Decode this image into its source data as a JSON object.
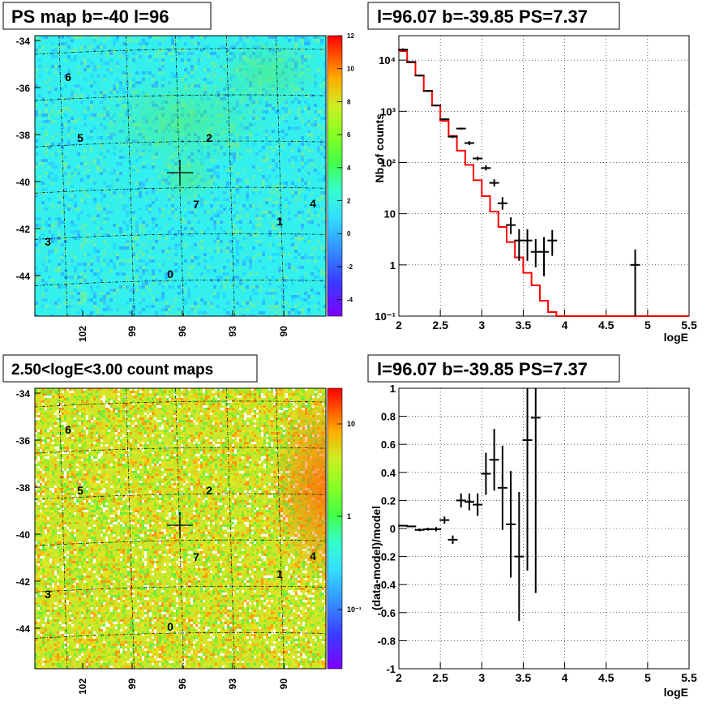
{
  "panels": {
    "tl": {
      "title": "PS map b=-40 l=96"
    },
    "tr": {
      "title": "l=96.07 b=-39.85 PS=7.37"
    },
    "bl": {
      "title": "2.50<logE<3.00 count maps"
    },
    "br": {
      "title": "l=96.07 b=-39.85 PS=7.37"
    }
  },
  "colors": {
    "model_line": "#ff0000",
    "data_points": "#000000",
    "grid": "#000000",
    "map_tl_base": "#33f0ee",
    "map_bl_base": "#c8e62a"
  },
  "chart_data": [
    {
      "type": "heatmap",
      "title": "PS map b=-40 l=96",
      "y_ticks": [
        "-34",
        "-36",
        "-38",
        "-40",
        "-42",
        "-44"
      ],
      "x_ticks": [
        "102",
        "99",
        "96",
        "93",
        "90"
      ],
      "colorbar": {
        "scale": "linear",
        "ticks": [
          "12",
          "10",
          "8",
          "6",
          "4",
          "2",
          "0",
          "-2",
          "-4"
        ],
        "range": [
          -5,
          12
        ]
      },
      "sources": [
        "6",
        "5",
        "2",
        "7",
        "4",
        "1",
        "3",
        "0"
      ],
      "marker": "+"
    },
    {
      "type": "line",
      "title": "l=96.07 b=-39.85 PS=7.37",
      "xlabel": "logE",
      "ylabel": "Nb of counts",
      "yscale": "log",
      "xlim": [
        2,
        5.5
      ],
      "ylim": [
        0.1,
        30000
      ],
      "x_ticks": [
        "2",
        "2.5",
        "3",
        "3.5",
        "4",
        "4.5",
        "5",
        "5.5"
      ],
      "y_ticks": [
        "10⁻¹",
        "1",
        "10",
        "10²",
        "10³",
        "10⁴"
      ],
      "grid": true,
      "model_bin_edges": [
        2.0,
        2.1,
        2.2,
        2.3,
        2.4,
        2.5,
        2.6,
        2.7,
        2.8,
        2.9,
        3.0,
        3.1,
        3.2,
        3.3,
        3.4,
        3.5,
        3.6,
        3.7,
        3.8,
        3.9,
        4.0,
        4.1,
        4.2,
        4.3,
        4.4,
        4.5,
        4.6,
        4.7,
        4.8,
        4.9,
        5.0,
        5.1,
        5.2,
        5.3,
        5.4,
        5.5
      ],
      "model_values": [
        15000,
        9000,
        5000,
        2500,
        1300,
        650,
        330,
        170,
        90,
        45,
        22,
        11,
        5.5,
        2.8,
        1.4,
        0.7,
        0.4,
        0.2,
        0.12,
        0.1,
        0.1,
        0.1,
        0.1,
        0.1,
        0.1,
        0.1,
        0.1,
        0.1,
        0.1,
        0.1,
        0.1,
        0.1,
        0.1,
        0.1,
        0.1
      ],
      "data_points": [
        {
          "x": 2.05,
          "y": 16000,
          "lo": 15000,
          "hi": 17000
        },
        {
          "x": 2.15,
          "y": 9200,
          "lo": 8900,
          "hi": 9500
        },
        {
          "x": 2.25,
          "y": 5000,
          "lo": 4800,
          "hi": 5200
        },
        {
          "x": 2.35,
          "y": 2500,
          "lo": 2400,
          "hi": 2600
        },
        {
          "x": 2.45,
          "y": 1300,
          "lo": 1250,
          "hi": 1350
        },
        {
          "x": 2.55,
          "y": 700,
          "lo": 670,
          "hi": 730
        },
        {
          "x": 2.65,
          "y": 320,
          "lo": 300,
          "hi": 340
        },
        {
          "x": 2.75,
          "y": 460,
          "lo": 440,
          "hi": 480
        },
        {
          "x": 2.85,
          "y": 240,
          "lo": 220,
          "hi": 260
        },
        {
          "x": 2.95,
          "y": 120,
          "lo": 110,
          "hi": 130
        },
        {
          "x": 3.05,
          "y": 78,
          "lo": 70,
          "hi": 88
        },
        {
          "x": 3.15,
          "y": 40,
          "lo": 34,
          "hi": 47
        },
        {
          "x": 3.25,
          "y": 16,
          "lo": 12,
          "hi": 21
        },
        {
          "x": 3.35,
          "y": 6,
          "lo": 4,
          "hi": 8.5
        },
        {
          "x": 3.45,
          "y": 3,
          "lo": 1.2,
          "hi": 5
        },
        {
          "x": 3.55,
          "y": 3,
          "lo": 1.2,
          "hi": 5
        },
        {
          "x": 3.65,
          "y": 1.8,
          "lo": 0.9,
          "hi": 3.2
        },
        {
          "x": 3.75,
          "y": 1.8,
          "lo": 0.6,
          "hi": 3.5
        },
        {
          "x": 3.85,
          "y": 3,
          "lo": 1.5,
          "hi": 4.8
        },
        {
          "x": 4.85,
          "y": 1,
          "lo": 0.1,
          "hi": 2
        }
      ]
    },
    {
      "type": "heatmap",
      "title": "2.50<logE<3.00 count maps",
      "y_ticks": [
        "-34",
        "-36",
        "-38",
        "-40",
        "-42",
        "-44"
      ],
      "x_ticks": [
        "102",
        "99",
        "96",
        "93",
        "90"
      ],
      "colorbar": {
        "scale": "log",
        "ticks": [
          "10",
          "1",
          "10⁻¹"
        ]
      },
      "sources": [
        "6",
        "5",
        "2",
        "7",
        "4",
        "1",
        "3",
        "0"
      ],
      "marker": "+"
    },
    {
      "type": "scatter",
      "title": "l=96.07 b=-39.85 PS=7.37",
      "xlabel": "logE",
      "ylabel": "(data-model)/model",
      "xlim": [
        2,
        5.5
      ],
      "ylim": [
        -1,
        1
      ],
      "x_ticks": [
        "2",
        "2.5",
        "3",
        "3.5",
        "4",
        "4.5",
        "5",
        "5.5"
      ],
      "y_ticks": [
        "-1",
        "-0.8",
        "-0.6",
        "-0.4",
        "-0.2",
        "0",
        "0.2",
        "0.4",
        "0.6",
        "0.8",
        "1"
      ],
      "grid": true,
      "data_points": [
        {
          "x": 2.05,
          "y": 0.02,
          "err": 0.005
        },
        {
          "x": 2.15,
          "y": 0.015,
          "err": 0.005
        },
        {
          "x": 2.25,
          "y": -0.01,
          "err": 0.01
        },
        {
          "x": 2.35,
          "y": -0.005,
          "err": 0.01
        },
        {
          "x": 2.45,
          "y": -0.005,
          "err": 0.015
        },
        {
          "x": 2.55,
          "y": 0.06,
          "err": 0.025
        },
        {
          "x": 2.65,
          "y": -0.08,
          "err": 0.03
        },
        {
          "x": 2.75,
          "y": 0.2,
          "err": 0.05
        },
        {
          "x": 2.85,
          "y": 0.19,
          "err": 0.06
        },
        {
          "x": 2.95,
          "y": 0.17,
          "err": 0.08
        },
        {
          "x": 3.05,
          "y": 0.39,
          "err": 0.15
        },
        {
          "x": 3.15,
          "y": 0.49,
          "err": 0.22
        },
        {
          "x": 3.25,
          "y": 0.29,
          "err": 0.3
        },
        {
          "x": 3.35,
          "y": 0.03,
          "err": 0.38
        },
        {
          "x": 3.45,
          "y": -0.2,
          "err": 0.46
        },
        {
          "x": 3.55,
          "y": 0.63,
          "err": 0.93
        },
        {
          "x": 3.65,
          "y": 0.79,
          "err": 1.25
        }
      ]
    }
  ]
}
